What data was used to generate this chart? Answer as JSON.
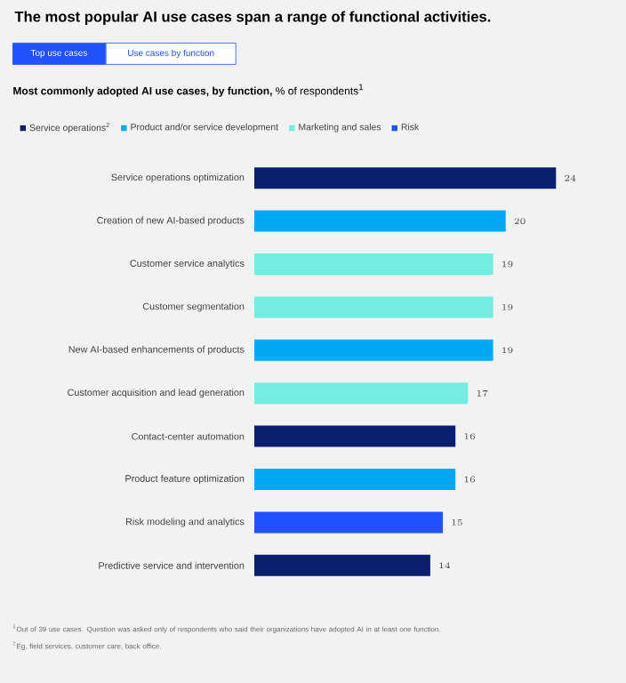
{
  "chart_data": {
    "type": "bar",
    "orientation": "horizontal",
    "title": "The most popular AI use cases span a range of functional activities.",
    "subtitle": "**Most commonly adopted AI use cases, by function,** % of respondents$^{1}$",
    "categories": [
      "Service operations optimization",
      "Creation of new AI-based products",
      "Customer service analytics",
      "Customer segmentation",
      "New AI-based enhancements of products",
      "Customer acquisition and lead generation",
      "Contact-center automation",
      "Product feature optimization",
      "Risk modeling and analytics",
      "Predictive service and intervention"
    ],
    "series": [
      {
        "name": "Service operations$^{2}$",
        "color": "#0b1f6e",
        "values": [
          24,
          null,
          null,
          null,
          null,
          null,
          16,
          null,
          null,
          14
        ]
      },
      {
        "name": "Product and/or service development",
        "color": "#00a9f4",
        "values": [
          null,
          20,
          null,
          null,
          19,
          null,
          null,
          16,
          null,
          null
        ]
      },
      {
        "name": "Marketing and sales",
        "color": "#73ede0",
        "values": [
          null,
          null,
          19,
          19,
          null,
          17,
          null,
          null,
          null,
          null
        ]
      },
      {
        "name": "Risk",
        "color": "#2251ff",
        "values": [
          null,
          null,
          null,
          null,
          null,
          null,
          null,
          null,
          15,
          null
        ]
      }
    ],
    "data_labels": true,
    "legend": "top left",
    "annotations": [
      "Top use cases",
      "Use cases by function",
      "$^{1}$Out of 39 use cases. Question was asked only of respondents who said their organizations have adopted AI in at least one function.",
      "$^{2}$Eg, field services, customer care, back office."
    ]
  }
}
